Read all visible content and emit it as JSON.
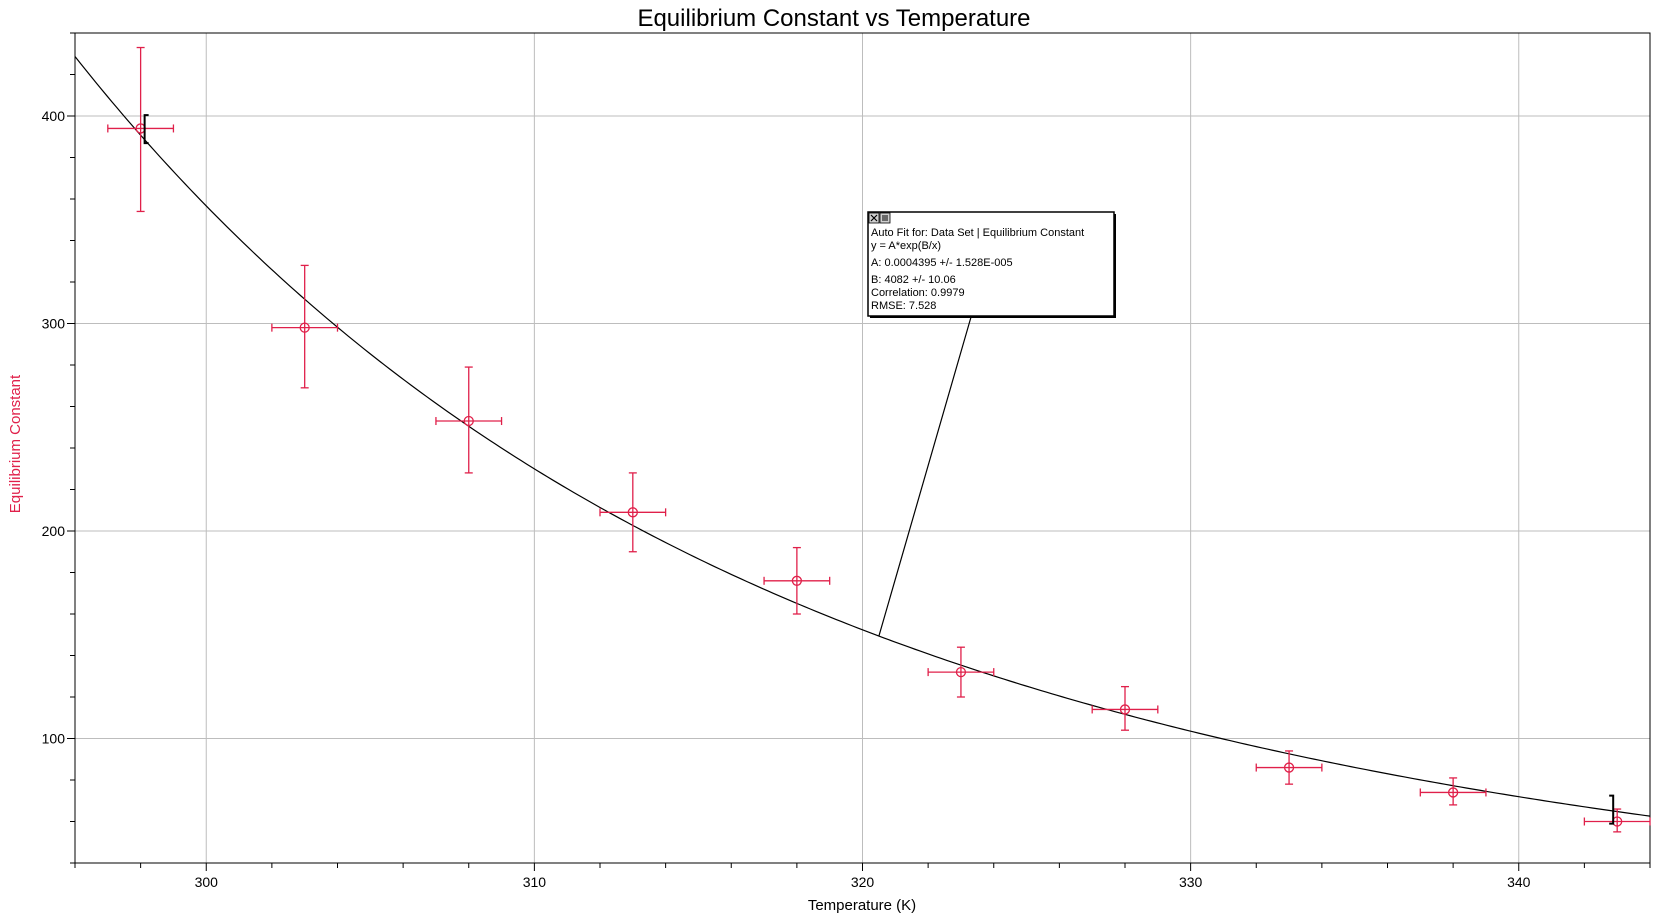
{
  "chart_data": {
    "type": "scatter",
    "title": "Equilibrium Constant vs Temperature",
    "xlabel": "Temperature (K)",
    "ylabel": "Equilibrium Constant",
    "xlim": [
      296,
      344
    ],
    "ylim": [
      40,
      440
    ],
    "x_ticks": [
      300,
      310,
      320,
      330,
      340
    ],
    "y_ticks": [
      100,
      200,
      300,
      400
    ],
    "x_minor_step": 2,
    "y_minor_step": 20,
    "grid": true,
    "colors": {
      "data": "#e0204a",
      "fit": "#000000",
      "grid": "#bdbdbd",
      "ylabel": "#e0204a"
    },
    "series": [
      {
        "x": [
          298,
          303,
          308,
          313,
          318,
          323,
          328,
          333,
          338,
          343
        ],
        "y": [
          394,
          298,
          253,
          209,
          176,
          132,
          114,
          86,
          74,
          60
        ],
        "y_err_low": [
          354,
          269,
          228,
          190,
          160,
          120,
          104,
          78,
          68,
          55
        ],
        "y_err_high": [
          433,
          328,
          279,
          228,
          192,
          144,
          125,
          94,
          81,
          66
        ],
        "x_err": 1
      }
    ],
    "fit": {
      "model": "y = A*exp(B/x)",
      "A": 0.0004395,
      "B": 4082,
      "x_range": [
        296,
        344
      ]
    },
    "bracket_points_x": [
      298,
      343
    ],
    "annotation": {
      "lines": [
        "Auto Fit for: Data Set | Equilibrium Constant",
        "y = A*exp(B/x)",
        "A: 0.0004395 +/- 1.528E-005",
        "B: 4082 +/- 10.06",
        "Correlation: 0.9979",
        "RMSE: 7.528"
      ],
      "pointer_x": 320.5
    }
  }
}
